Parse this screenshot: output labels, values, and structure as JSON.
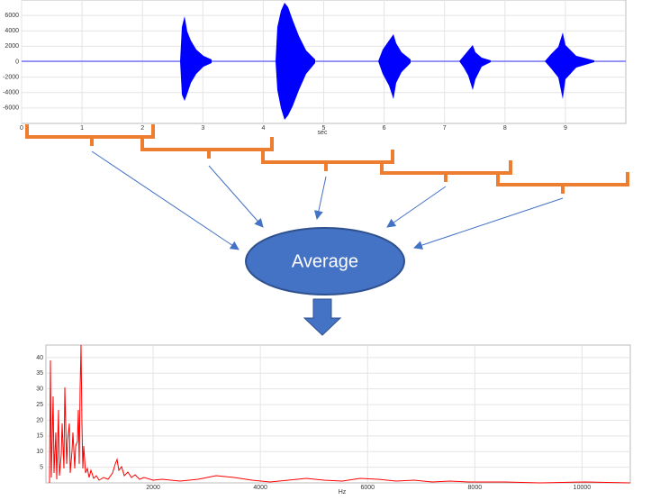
{
  "waveform": {
    "xticks": [
      0,
      1,
      2,
      3,
      4,
      5,
      6,
      7,
      8,
      9
    ],
    "xlim": [
      0,
      10
    ],
    "yticks": [
      6000,
      4000,
      2000,
      0,
      -2000,
      -4000,
      -6000
    ],
    "ylim": [
      -8000,
      8000
    ],
    "xlabel": "sec"
  },
  "node": {
    "label": "Average"
  },
  "spectrum": {
    "xticks": [
      2000,
      4000,
      6000,
      8000,
      10000
    ],
    "xlim": [
      0,
      10900
    ],
    "yticks": [
      5,
      10,
      15,
      20,
      25,
      30,
      35,
      40
    ],
    "ylim": [
      0,
      44
    ],
    "xlabel": "Hz"
  }
}
